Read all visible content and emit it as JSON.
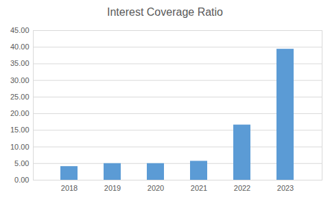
{
  "chart_data": {
    "type": "bar",
    "title": "Interest Coverage Ratio",
    "categories": [
      "2018",
      "2019",
      "2020",
      "2021",
      "2022",
      "2023"
    ],
    "values": [
      4.1,
      5.0,
      5.0,
      5.7,
      16.6,
      39.4
    ],
    "color": "#5b9bd5",
    "ylim": [
      0,
      45
    ],
    "yticks": [
      {
        "value": 0,
        "label": "0.00"
      },
      {
        "value": 5,
        "label": "5.00"
      },
      {
        "value": 10,
        "label": "10.00"
      },
      {
        "value": 15,
        "label": "15.00"
      },
      {
        "value": 20,
        "label": "20.00"
      },
      {
        "value": 25,
        "label": "25.00"
      },
      {
        "value": 30,
        "label": "30.00"
      },
      {
        "value": 35,
        "label": "35.00"
      },
      {
        "value": 40,
        "label": "40.00"
      },
      {
        "value": 45,
        "label": "45.00"
      }
    ],
    "grid": true
  }
}
